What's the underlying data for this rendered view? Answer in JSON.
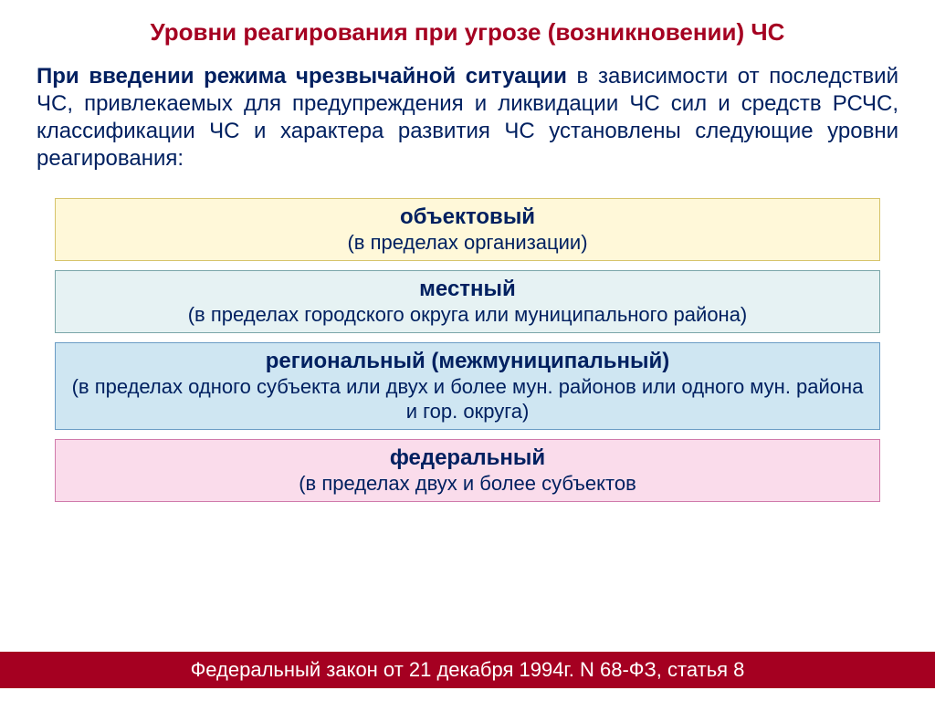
{
  "title": "Уровни реагирования при угрозе (возникновении) ЧС",
  "intro": {
    "lead": "При введении режима чрезвычайной ситуации",
    "rest": " в зависимости от последствий ЧС, привлекаемых для предупреждения и ликвидации ЧС сил и средств РСЧС, классификации ЧС и характера развития ЧС установлены следующие уровни реагирования:"
  },
  "levels": [
    {
      "title": "объектовый",
      "sub": "(в пределах организации)",
      "bg": "#fff8d9",
      "border": "#d6c36a"
    },
    {
      "title": "местный",
      "sub": "(в пределах городского округа или муниципального района)",
      "bg": "#e6f2f3",
      "border": "#7aa6a9"
    },
    {
      "title": "региональный (межмуниципальный)",
      "sub": "(в пределах одного субъекта или двух и более мун. районов или одного мун. района и гор. округа)",
      "bg": "#cfe6f2",
      "border": "#6a9cc4"
    },
    {
      "title": "федеральный",
      "sub": "(в пределах двух и более субъектов",
      "bg": "#fadceb",
      "border": "#d07aab"
    }
  ],
  "footer": "Федеральный закон от 21 декабря 1994г. N 68-ФЗ, статья 8",
  "colors": {
    "title": "#a50021",
    "body_text": "#002060",
    "footer_bg": "#a50021",
    "footer_text": "#ffffff"
  },
  "typography": {
    "title_fontsize": 26,
    "intro_fontsize": 24,
    "level_title_fontsize": 24,
    "level_sub_fontsize": 22,
    "footer_fontsize": 22,
    "font_family": "Arial"
  }
}
